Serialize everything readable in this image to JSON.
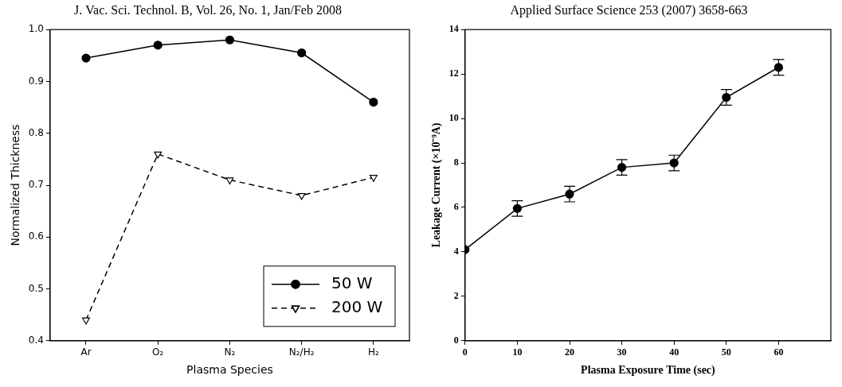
{
  "chart_data": [
    {
      "type": "line",
      "title": "J. Vac. Sci. Technol. B, Vol. 26, No. 1, Jan/Feb 2008",
      "x_label": "Plasma Species",
      "y_label": "Normalized Thickness",
      "categories": [
        "Ar",
        "O₂",
        "N₂",
        "N₂/H₂",
        "H₂"
      ],
      "series": [
        {
          "name": "50 W",
          "color": "#000000",
          "marker": "circle",
          "line_style": "solid",
          "values": [
            0.945,
            0.97,
            0.98,
            0.955,
            0.86
          ]
        },
        {
          "name": "200 W",
          "color": "#000000",
          "marker": "triangle-down-open",
          "line_style": "dashed",
          "values": [
            0.44,
            0.76,
            0.71,
            0.68,
            0.715
          ]
        }
      ],
      "ylim": [
        0.4,
        1.0
      ],
      "yticks": [
        0.4,
        0.5,
        0.6,
        0.7,
        0.8,
        0.9,
        {
          "value": 1,
          "label": "1.0"
        }
      ],
      "grid": false,
      "legend": "lower right"
    },
    {
      "type": "line",
      "title": "Applied Surface Science 253 (2007) 3658-663",
      "x_label": "Plasma Exposure Time (sec)",
      "y_label": "Leakage Current (×10⁻⁹A)",
      "x": [
        0,
        10,
        20,
        30,
        40,
        50,
        60
      ],
      "values": [
        4.1,
        5.95,
        6.6,
        7.8,
        8.0,
        10.95,
        12.3
      ],
      "errors": [
        0,
        0.35,
        0.35,
        0.35,
        0.35,
        0.35,
        0.35
      ],
      "color": "#000000",
      "marker": "circle",
      "xlim": [
        0,
        70
      ],
      "xticks": [
        0,
        10,
        20,
        30,
        40,
        50,
        60
      ],
      "ylim": [
        0,
        14
      ],
      "yticks": [
        0,
        2,
        4,
        6,
        8,
        10,
        12,
        14
      ],
      "grid": false
    }
  ]
}
